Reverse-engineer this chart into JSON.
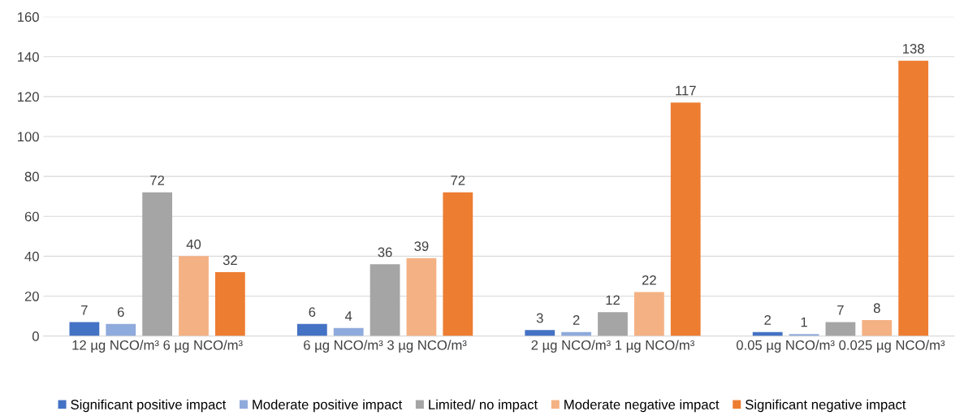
{
  "chart_data": {
    "type": "bar",
    "categories": [
      "12 µg NCO/m³ 6 µg NCO/m³",
      "6 µg NCO/m³ 3 µg NCO/m³",
      "2 µg NCO/m³ 1 µg NCO/m³",
      "0.05 µg NCO/m³ 0.025 µg NCO/m³"
    ],
    "series": [
      {
        "name": "Significant positive impact",
        "color": "#4472c4",
        "values": [
          7,
          6,
          3,
          2
        ]
      },
      {
        "name": "Moderate positive impact",
        "color": "#8faadc",
        "values": [
          6,
          4,
          2,
          1
        ]
      },
      {
        "name": "Limited/ no impact",
        "color": "#a5a5a5",
        "values": [
          72,
          36,
          12,
          7
        ]
      },
      {
        "name": "Moderate negative impact",
        "color": "#f4b183",
        "values": [
          40,
          39,
          22,
          8
        ]
      },
      {
        "name": "Significant negative impact",
        "color": "#ed7d31",
        "values": [
          32,
          72,
          117,
          138
        ]
      }
    ],
    "ylim": [
      0,
      160
    ],
    "yticks": [
      0,
      20,
      40,
      60,
      80,
      100,
      120,
      140,
      160
    ],
    "grid": "y",
    "data_labels": true,
    "legend": "bottom"
  }
}
